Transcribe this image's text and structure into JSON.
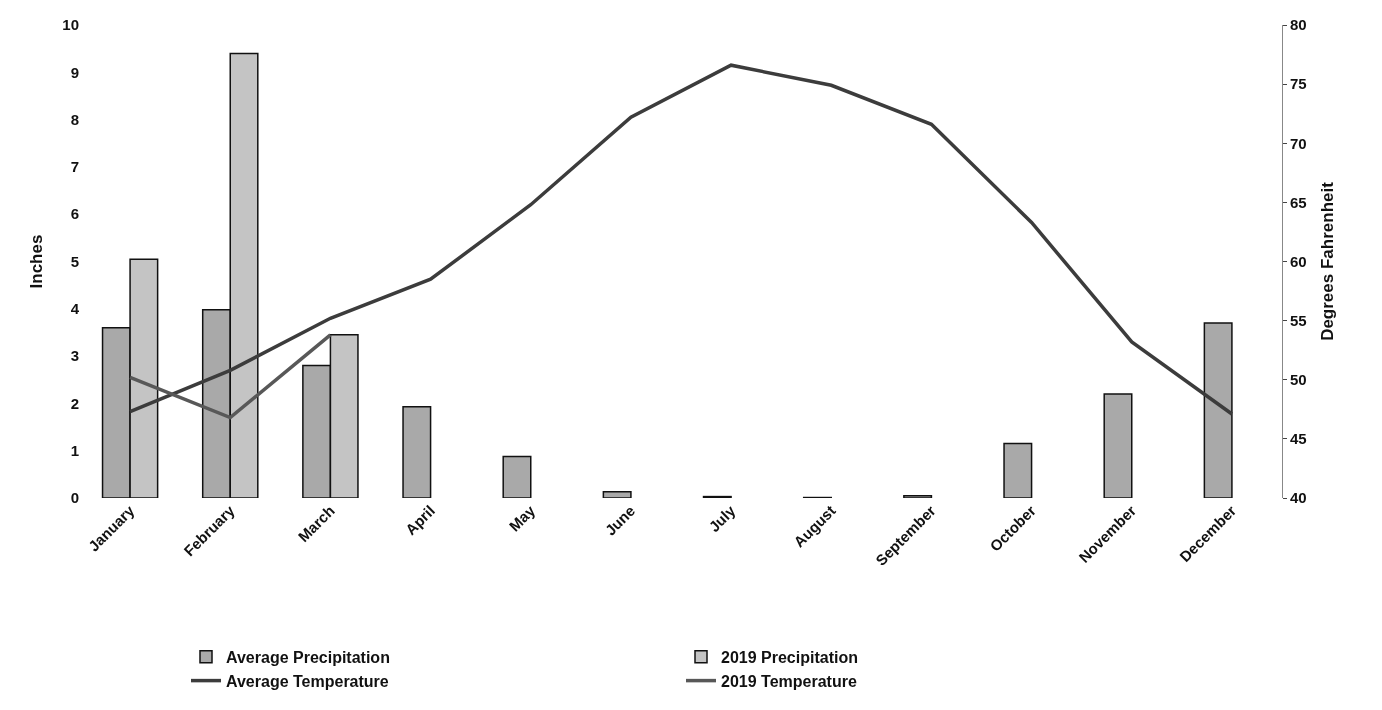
{
  "chart_data": {
    "type": "bar",
    "ylabel": "Inches",
    "y2label": "Degrees Fahrenheit",
    "categories": [
      "January",
      "February",
      "March",
      "April",
      "May",
      "June",
      "July",
      "August",
      "September",
      "October",
      "November",
      "December"
    ],
    "series": [
      {
        "name": "Average Precipitation",
        "color": "#a9a9a9",
        "values": [
          3.6,
          3.98,
          2.8,
          1.93,
          0.88,
          0.13,
          0.03,
          0.01,
          0.05,
          1.15,
          2.2,
          3.7
        ]
      },
      {
        "name": "2019 Precipitation",
        "color": "#c4c4c4",
        "values": [
          5.05,
          9.4,
          3.45,
          null,
          null,
          null,
          null,
          null,
          null,
          null,
          null,
          null
        ]
      },
      {
        "name": "Average Temperature",
        "type": "line",
        "axis": "y2",
        "color": "#3c3c3c",
        "values": [
          47.3,
          50.8,
          55.2,
          58.5,
          64.8,
          72.2,
          76.6,
          74.9,
          71.6,
          63.3,
          53.2,
          47.1
        ]
      },
      {
        "name": "2019 Temperature",
        "type": "line",
        "axis": "y2",
        "color": "#585858",
        "values": [
          50.2,
          46.8,
          53.8,
          null,
          null,
          null,
          null,
          null,
          null,
          null,
          null,
          null
        ]
      }
    ],
    "ylim": [
      0,
      10
    ],
    "yticks": [
      0,
      1,
      2,
      3,
      4,
      5,
      6,
      7,
      8,
      9,
      10
    ],
    "y2lim": [
      40,
      80
    ],
    "y2ticks": [
      40,
      45,
      50,
      55,
      60,
      65,
      70,
      75,
      80
    ],
    "legend": "bottom",
    "marker": "none",
    "line_style": "solid"
  }
}
